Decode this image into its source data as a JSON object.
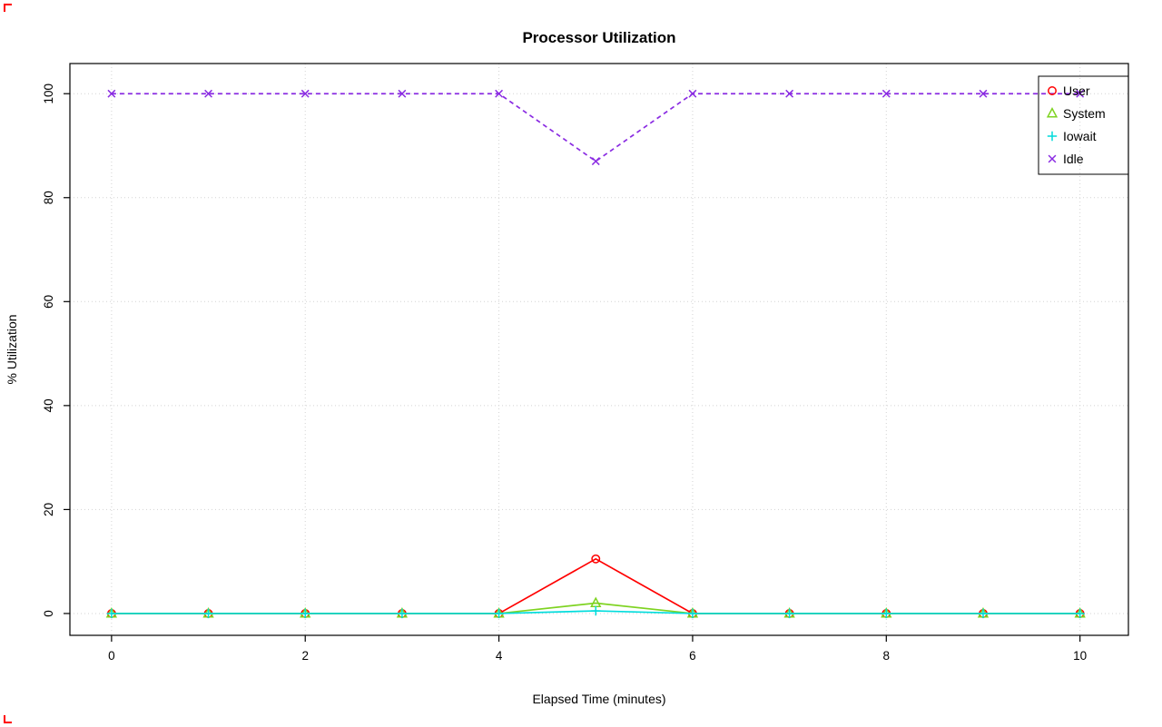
{
  "page": {
    "background": "#ffffff"
  },
  "decorations": {
    "corner_marks_color": "#ff0000"
  },
  "chart_data": {
    "type": "line",
    "title": "Processor Utilization",
    "xlabel": "Elapsed Time (minutes)",
    "ylabel": "% Utilization",
    "x": [
      0,
      1,
      2,
      3,
      4,
      5,
      6,
      7,
      8,
      9,
      10
    ],
    "x_ticks": [
      0,
      2,
      4,
      6,
      8,
      10
    ],
    "x_tick_labels": [
      "0",
      "2",
      "4",
      "6",
      "8",
      "10"
    ],
    "y_ticks": [
      0,
      20,
      40,
      60,
      80,
      100
    ],
    "y_tick_labels": [
      "0",
      "20",
      "40",
      "60",
      "80",
      "100"
    ],
    "xlim": [
      -0.43,
      10.5
    ],
    "ylim": [
      -4.2,
      105.8
    ],
    "grid": true,
    "grid_color": "#d3d3d3",
    "legend_position": "top-right",
    "series": [
      {
        "name": "User",
        "color": "#ff0000",
        "symbol": "circle",
        "dash": "none",
        "values": [
          0,
          0,
          0,
          0,
          0,
          10.5,
          0,
          0,
          0,
          0,
          0
        ]
      },
      {
        "name": "System",
        "color": "#7ed321",
        "symbol": "triangle",
        "dash": "none",
        "values": [
          0,
          0,
          0,
          0,
          0,
          2,
          0,
          0,
          0,
          0,
          0
        ]
      },
      {
        "name": "Iowait",
        "color": "#00dcdc",
        "symbol": "plus",
        "dash": "none",
        "values": [
          0,
          0,
          0,
          0,
          0,
          0.5,
          0,
          0,
          0,
          0,
          0
        ]
      },
      {
        "name": "Idle",
        "color": "#8a2be2",
        "symbol": "x",
        "dash": "5 4",
        "values": [
          100,
          100,
          100,
          100,
          100,
          87,
          100,
          100,
          100,
          100,
          100
        ]
      }
    ]
  }
}
